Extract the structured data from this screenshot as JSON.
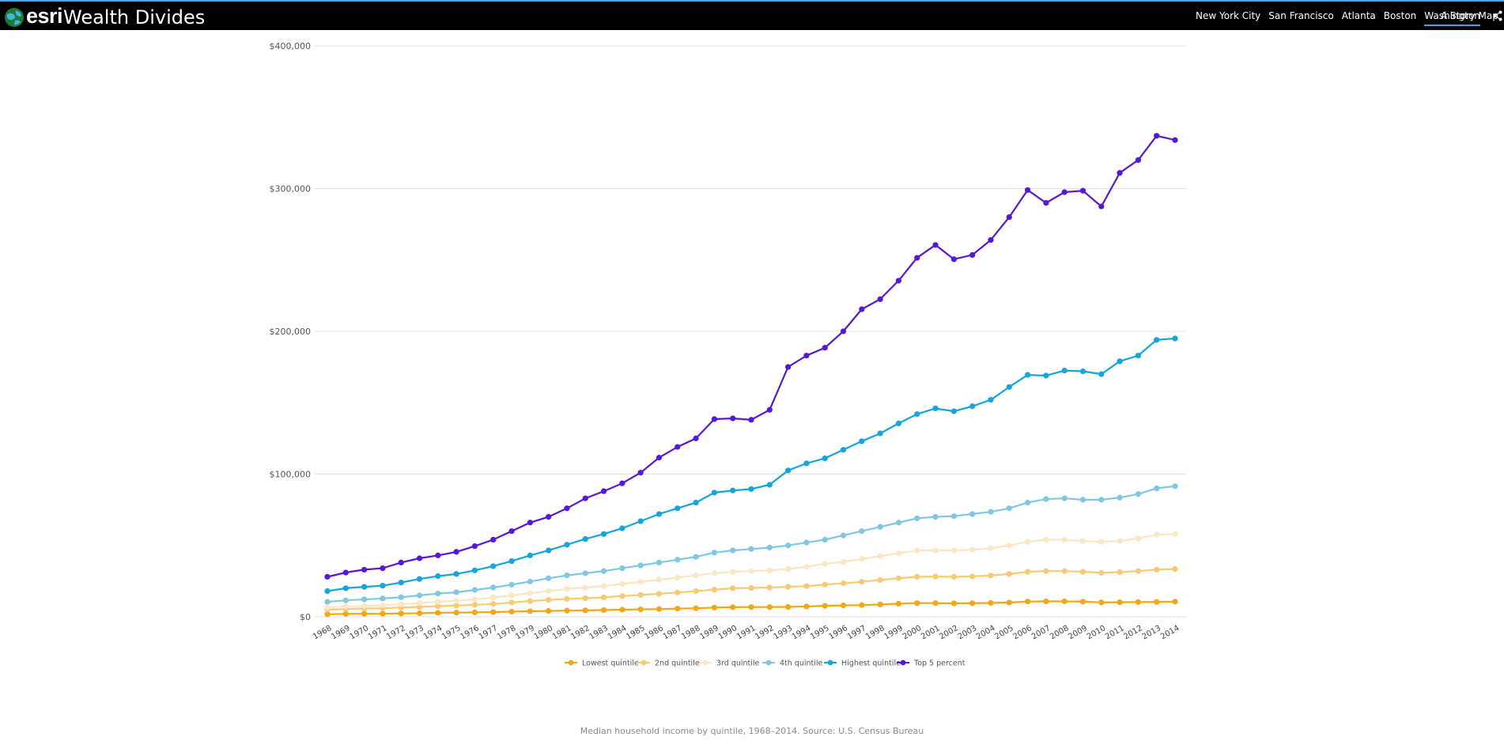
{
  "header": {
    "brand": "esri",
    "title": "Wealth Divides",
    "nav": [
      "New York City",
      "San Francisco",
      "Atlanta",
      "Boston",
      "Washington"
    ],
    "active_nav": "Washington",
    "story_link": "A Story Map"
  },
  "caption": "Median household income by quintile, 1968–2014. Source: U.S. Census Bureau",
  "chart_data": {
    "type": "line",
    "title": "",
    "xlabel": "",
    "ylabel": "",
    "ylim": [
      0,
      400000
    ],
    "y_ticks": [
      0,
      100000,
      200000,
      300000,
      400000
    ],
    "y_tick_labels": [
      "$0",
      "$100,000",
      "$200,000",
      "$300,000",
      "$400,000"
    ],
    "grid": true,
    "legend_position": "bottom",
    "x": [
      "1968",
      "1969",
      "1970",
      "1971",
      "1972",
      "1973",
      "1974",
      "1975",
      "1976",
      "1977",
      "1978",
      "1979",
      "1980",
      "1981",
      "1982",
      "1983",
      "1984",
      "1985",
      "1986",
      "1987",
      "1988",
      "1989",
      "1990",
      "1991",
      "1992",
      "1993",
      "1994",
      "1995",
      "1996",
      "1997",
      "1998",
      "1999",
      "2000",
      "2001",
      "2002",
      "2003",
      "2004",
      "2005",
      "2006",
      "2007",
      "2008",
      "2009",
      "2010",
      "2011",
      "2012",
      "2013",
      "2014"
    ],
    "series": [
      {
        "name": "Lowest quintile",
        "color": "#f5a712",
        "values": [
          1800,
          2000,
          2100,
          2100,
          2300,
          2500,
          2800,
          2900,
          3100,
          3300,
          3600,
          3900,
          4100,
          4300,
          4500,
          4700,
          5000,
          5200,
          5400,
          5700,
          6000,
          6400,
          6700,
          6800,
          6800,
          6900,
          7200,
          7700,
          8000,
          8200,
          8600,
          9200,
          9600,
          9600,
          9400,
          9500,
          9700,
          10000,
          10700,
          10800,
          10800,
          10600,
          10100,
          10200,
          10300,
          10400,
          10600
        ]
      },
      {
        "name": "2nd quintile",
        "color": "#f8ca72",
        "values": [
          5000,
          5500,
          5800,
          6000,
          6500,
          6900,
          7400,
          7800,
          8400,
          9000,
          10000,
          11000,
          11800,
          12500,
          13000,
          13600,
          14500,
          15300,
          16100,
          17000,
          18000,
          19000,
          20000,
          20200,
          20500,
          21000,
          21500,
          22500,
          23500,
          24500,
          25800,
          27000,
          28000,
          28200,
          28000,
          28300,
          28900,
          30000,
          31500,
          32000,
          32000,
          31500,
          30800,
          31300,
          32000,
          33000,
          33500
        ]
      },
      {
        "name": "3rd quintile",
        "color": "#fde7c2",
        "values": [
          6500,
          7200,
          7600,
          8000,
          8800,
          9600,
          10500,
          11200,
          12200,
          13500,
          15000,
          16500,
          18000,
          19500,
          20500,
          21500,
          23000,
          24500,
          26000,
          27500,
          29000,
          30500,
          31500,
          32000,
          32500,
          33500,
          35000,
          37000,
          38500,
          40500,
          42500,
          44500,
          46500,
          46500,
          46500,
          47000,
          48000,
          50000,
          52500,
          54000,
          54000,
          53000,
          52500,
          53000,
          55000,
          57500,
          58000
        ]
      },
      {
        "name": "4th quintile",
        "color": "#7ec8e3",
        "values": [
          10500,
          11500,
          12200,
          12800,
          13700,
          15000,
          16300,
          17200,
          18800,
          20500,
          22500,
          24700,
          27000,
          29000,
          30500,
          32000,
          34000,
          36000,
          38000,
          40000,
          42000,
          45000,
          46500,
          47500,
          48500,
          50000,
          52000,
          54000,
          57000,
          60000,
          63000,
          66000,
          69000,
          70000,
          70500,
          72000,
          73500,
          76000,
          80000,
          82500,
          83000,
          82000,
          82000,
          83500,
          86000,
          90000,
          91500
        ]
      },
      {
        "name": "Highest quintile",
        "color": "#11a5e2",
        "values": [
          18000,
          20000,
          21000,
          21800,
          24000,
          26500,
          28500,
          30000,
          32500,
          35500,
          39000,
          43000,
          46500,
          50500,
          54500,
          58000,
          62000,
          67000,
          72000,
          76000,
          80000,
          87000,
          88500,
          89500,
          92500,
          102500,
          107500,
          111000,
          117000,
          123000,
          128500,
          135500,
          142000,
          146000,
          144000,
          147500,
          152000,
          161000,
          169500,
          169000,
          172500,
          172000,
          170000,
          179000,
          183000,
          194000,
          195000
        ]
      },
      {
        "name": "Top 5 percent",
        "color": "#5517e0",
        "values": [
          28000,
          31000,
          33000,
          34000,
          38000,
          41000,
          43000,
          45500,
          49500,
          54000,
          60000,
          66000,
          70000,
          76000,
          83000,
          88000,
          93500,
          101000,
          111500,
          119000,
          125000,
          138500,
          139000,
          138000,
          145000,
          175000,
          183000,
          188500,
          200000,
          215500,
          222500,
          235500,
          251500,
          260500,
          250500,
          253500,
          264000,
          280000,
          299000,
          290000,
          297500,
          298500,
          287500,
          311000,
          320000,
          337000,
          334000
        ]
      }
    ]
  }
}
